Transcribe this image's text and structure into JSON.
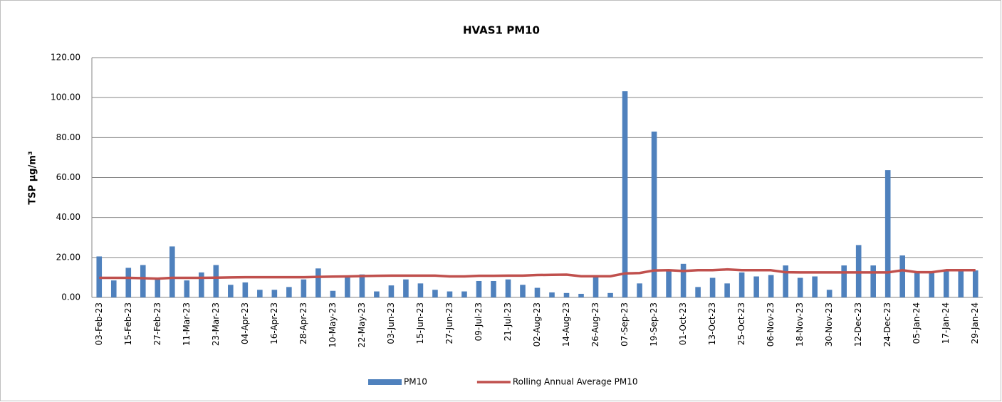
{
  "chart_data": {
    "type": "bar",
    "title": "HVAS1 PM10",
    "y_label": "TSP µg/m³",
    "categories": [
      "03-Feb-23",
      null,
      "15-Feb-23",
      null,
      "27-Feb-23",
      null,
      "11-Mar-23",
      null,
      "23-Mar-23",
      null,
      "04-Apr-23",
      null,
      "16-Apr-23",
      null,
      "28-Apr-23",
      null,
      "10-May-23",
      null,
      "22-May-23",
      null,
      "03-Jun-23",
      null,
      "15-Jun-23",
      null,
      "27-Jun-23",
      null,
      "09-Jul-23",
      null,
      "21-Jul-23",
      null,
      "02-Aug-23",
      null,
      "14-Aug-23",
      null,
      "26-Aug-23",
      null,
      "07-Sep-23",
      null,
      "19-Sep-23",
      null,
      "01-Oct-23",
      null,
      "13-Oct-23",
      null,
      "25-Oct-23",
      null,
      "06-Nov-23",
      null,
      "18-Nov-23",
      null,
      "30-Nov-23",
      null,
      "12-Dec-23",
      null,
      "24-Dec-23",
      null,
      "05-Jan-24",
      null,
      "17-Jan-24",
      null,
      "29-Jan-24"
    ],
    "series": [
      {
        "name": "PM10",
        "type": "bar",
        "color": "#4f81bd",
        "values": [
          20.5,
          8.5,
          14.8,
          16.2,
          9,
          25.5,
          8.5,
          12.5,
          16.2,
          6.3,
          7.5,
          3.8,
          3.8,
          5.2,
          9,
          14.5,
          3.3,
          10,
          11.5,
          3,
          6,
          9,
          7,
          3.8,
          3,
          3,
          8.2,
          8.2,
          9,
          6.3,
          4.8,
          2.5,
          2.2,
          1.8,
          10.5,
          2.2,
          103.2,
          7,
          83,
          13.5,
          16.8,
          5.2,
          9.8,
          7,
          12.5,
          10.5,
          11.2,
          16,
          9.8,
          10.5,
          3.8,
          16,
          26.2,
          16,
          63.7,
          21,
          12.5,
          12.5,
          13.5,
          13.5,
          13.5
        ]
      },
      {
        "name": "Rolling Annual Average PM10",
        "type": "line",
        "color": "#c0504d",
        "values": [
          9.8,
          9.8,
          9.8,
          9.6,
          9.4,
          9.8,
          9.8,
          9.8,
          9.9,
          10,
          10.1,
          10.1,
          10.1,
          10.1,
          10.1,
          10.3,
          10.4,
          10.5,
          10.7,
          10.8,
          10.9,
          10.9,
          10.9,
          10.9,
          10.5,
          10.5,
          10.8,
          10.8,
          10.9,
          10.9,
          11.2,
          11.3,
          11.4,
          10.6,
          10.6,
          10.6,
          12,
          12.2,
          13.5,
          13.6,
          13.2,
          13.6,
          13.6,
          14,
          13.6,
          13.6,
          13.6,
          12.6,
          12.5,
          12.5,
          12.5,
          12.5,
          12.5,
          12.5,
          12.5,
          13.6,
          12.6,
          12.6,
          13.6,
          13.6,
          13.6
        ]
      }
    ],
    "ylim": [
      0,
      120
    ],
    "yticks": [
      {
        "value": 0,
        "label": "0.00"
      },
      {
        "value": 20,
        "label": "20.00"
      },
      {
        "value": 40,
        "label": "40.00"
      },
      {
        "value": 60,
        "label": "60.00"
      },
      {
        "value": 80,
        "label": "80.00"
      },
      {
        "value": 100,
        "label": "100.00"
      },
      {
        "value": 120,
        "label": "120.00"
      }
    ],
    "grid": true,
    "legend": "bottom"
  }
}
